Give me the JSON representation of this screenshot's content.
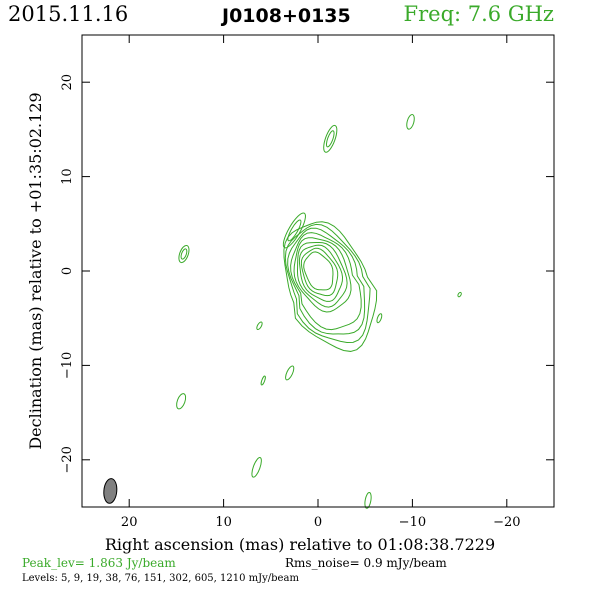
{
  "header": {
    "date": "2015.11.16",
    "source": "J0108+0135",
    "freq": "Freq: 7.6 GHz"
  },
  "chart_data": {
    "type": "contour",
    "xlabel": "Right ascension (mas) relative to 01:08:38.7229",
    "ylabel": "Declination (mas) relative to +01:35:02.129",
    "xlim": [
      25,
      -25
    ],
    "ylim": [
      -25,
      25
    ],
    "xticks": [
      20,
      10,
      0,
      -10,
      -20
    ],
    "xtick_labels": [
      "20",
      "10",
      "0",
      "−10",
      "−20"
    ],
    "yticks": [
      20,
      10,
      0,
      -10,
      -20
    ],
    "ytick_labels": [
      "20",
      "10",
      "0",
      "−10",
      "−20"
    ],
    "peak_flux_jy_per_beam": 1.863,
    "rms_noise_mjy_per_beam": 0.9,
    "contour_levels_mjy_per_beam": [
      5,
      9,
      19,
      38,
      76,
      151,
      302,
      605,
      1210
    ],
    "beam": {
      "x": 22,
      "y": -23.3,
      "major": 2.5,
      "minor": 1.3,
      "pa_deg": 5
    },
    "core": {
      "x": 0,
      "y": 0
    },
    "features": [
      {
        "x": -1.3,
        "y": 14.0,
        "rx": 0.5,
        "ry": 1.5,
        "rot": 20
      },
      {
        "x": -9.8,
        "y": 15.8,
        "rx": 0.35,
        "ry": 0.8,
        "rot": 15
      },
      {
        "x": 2.5,
        "y": 4.3,
        "rx": 0.6,
        "ry": 2.1,
        "rot": 30
      },
      {
        "x": 14.2,
        "y": 1.8,
        "rx": 0.45,
        "ry": 0.95,
        "rot": 20
      },
      {
        "x": 6.2,
        "y": -5.8,
        "rx": 0.2,
        "ry": 0.45,
        "rot": 30
      },
      {
        "x": -6.5,
        "y": -5.0,
        "rx": 0.2,
        "ry": 0.5,
        "rot": 20
      },
      {
        "x": -15.0,
        "y": -2.5,
        "rx": 0.15,
        "ry": 0.25,
        "rot": 30
      },
      {
        "x": 3.0,
        "y": -10.8,
        "rx": 0.3,
        "ry": 0.8,
        "rot": 25
      },
      {
        "x": 5.8,
        "y": -11.6,
        "rx": 0.15,
        "ry": 0.5,
        "rot": 20
      },
      {
        "x": 14.5,
        "y": -13.8,
        "rx": 0.4,
        "ry": 0.85,
        "rot": 20
      },
      {
        "x": 6.5,
        "y": -20.8,
        "rx": 0.35,
        "ry": 1.1,
        "rot": 20
      },
      {
        "x": -5.3,
        "y": -24.3,
        "rx": 0.3,
        "ry": 0.85,
        "rot": 10
      }
    ]
  },
  "footer": {
    "peak": "Peak_lev=  1.863 Jy/beam",
    "rms": "Rms_noise=  0.9 mJy/beam",
    "levels": "Levels:   5,   9,  19,  38,  76, 151, 302, 605, 1210 mJy/beam"
  },
  "colors": {
    "contour": "#3aaa2a",
    "beam": "#808080"
  }
}
